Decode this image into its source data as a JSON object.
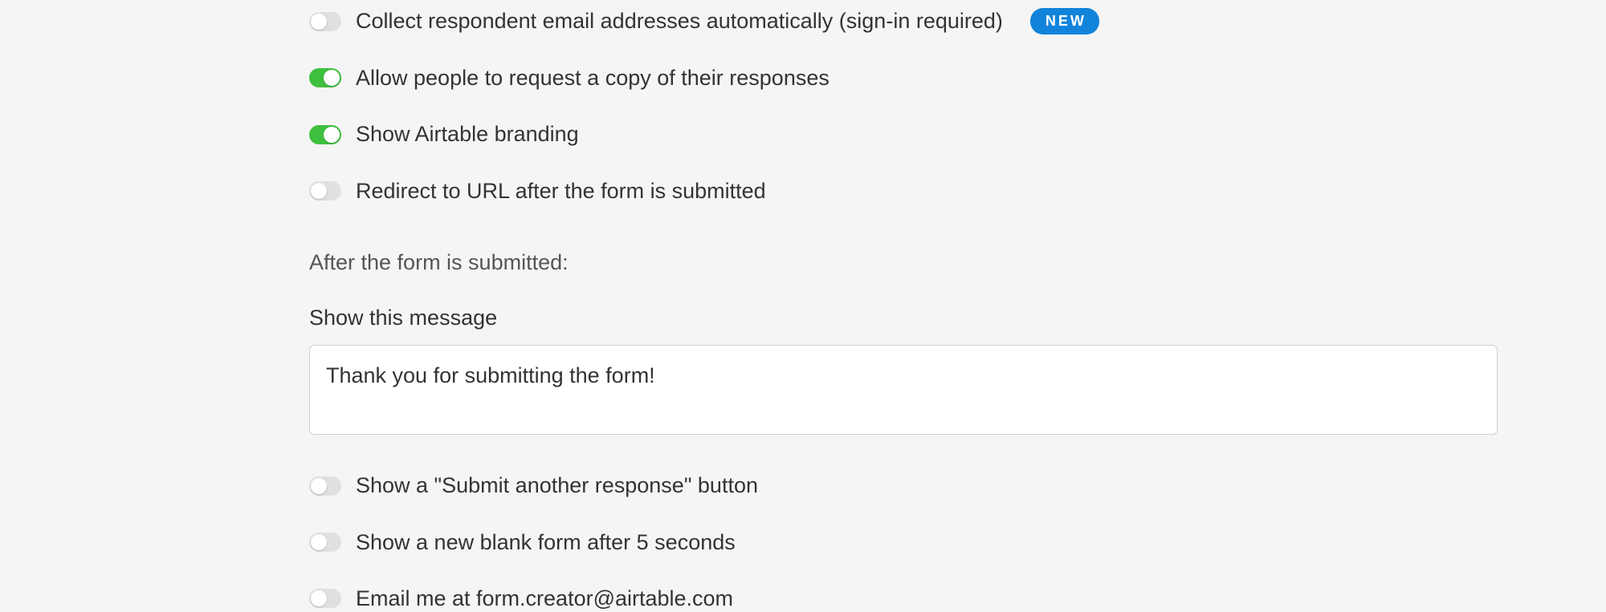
{
  "colors": {
    "page_bg": "#f5f5f5",
    "toggle_off_bg": "#e0e0e0",
    "toggle_on_bg": "#3ec03e",
    "toggle_knob": "#ffffff",
    "text_primary": "#333333",
    "text_secondary": "#555555",
    "badge_bg": "#1283da",
    "badge_text": "#ffffff",
    "input_bg": "#ffffff",
    "input_border": "#d0d0d0"
  },
  "settings": {
    "collect_email": {
      "label": "Collect respondent email addresses automatically (sign-in required)",
      "enabled": false,
      "badge": "NEW"
    },
    "allow_copy": {
      "label": "Allow people to request a copy of their responses",
      "enabled": true
    },
    "show_branding": {
      "label": "Show Airtable branding",
      "enabled": true
    },
    "redirect_url": {
      "label": "Redirect to URL after the form is submitted",
      "enabled": false
    }
  },
  "after_submit": {
    "section_label": "After the form is submitted:",
    "message_label": "Show this message",
    "message_value": "Thank you for submitting the form!",
    "show_submit_another": {
      "label": "Show a \"Submit another response\" button",
      "enabled": false
    },
    "show_blank_form": {
      "label": "Show a new blank form after 5 seconds",
      "enabled": false
    },
    "email_me": {
      "label": "Email me at form.creator@airtable.com",
      "enabled": false
    }
  }
}
